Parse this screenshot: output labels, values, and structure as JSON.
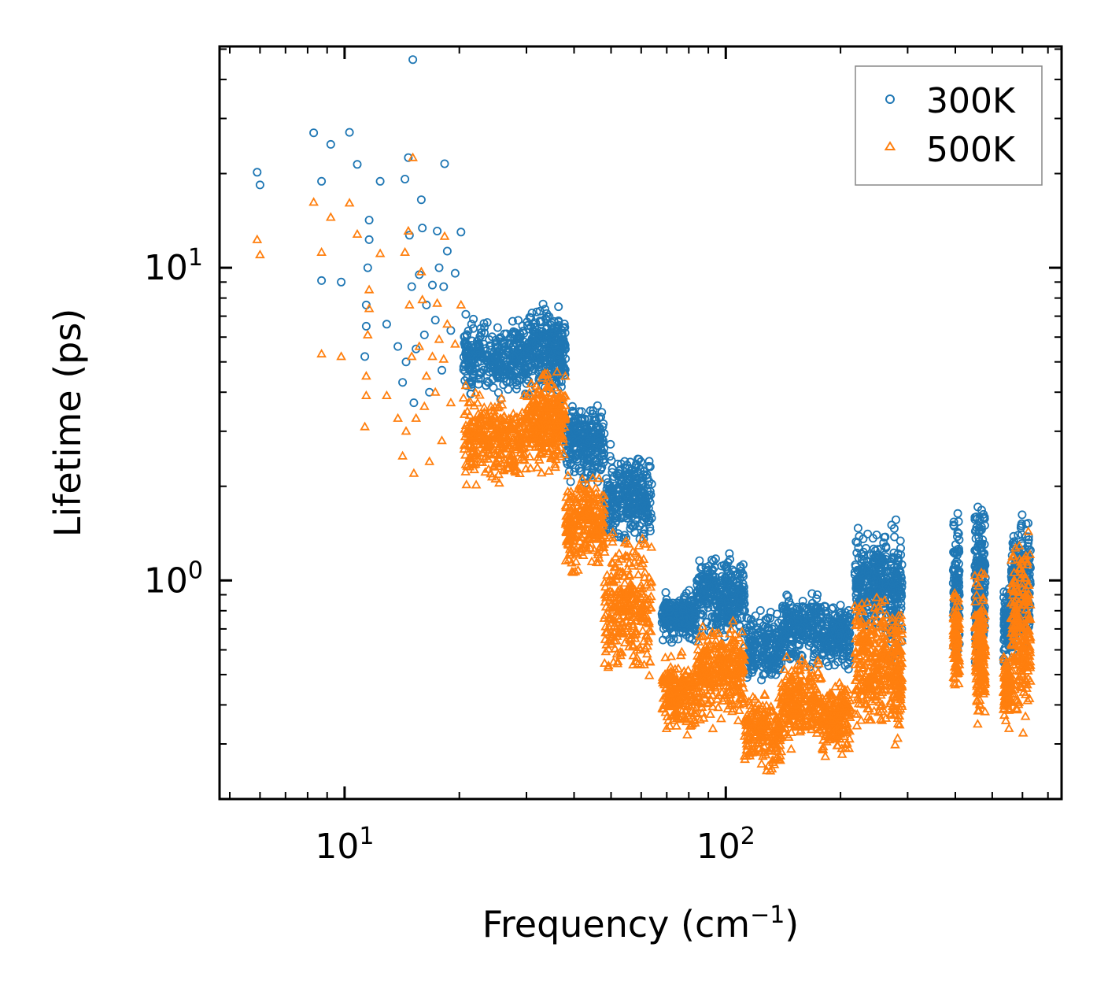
{
  "chart_data": {
    "type": "scatter",
    "title": "",
    "xlabel": {
      "text": "Frequency (cm",
      "sup": "−1",
      "suffix": ")"
    },
    "ylabel": "Lifetime (ps)",
    "xscale": "log",
    "yscale": "log",
    "xlim": [
      4.7,
      760
    ],
    "ylim": [
      0.2,
      51
    ],
    "x_ticks": [
      {
        "value": 10,
        "base": "10",
        "exp": "1"
      },
      {
        "value": 100,
        "base": "10",
        "exp": "2"
      }
    ],
    "y_ticks": [
      {
        "value": 1,
        "base": "10",
        "exp": "0"
      },
      {
        "value": 10,
        "base": "10",
        "exp": "1"
      }
    ],
    "grid": false,
    "legend_position": "top-right",
    "series": [
      {
        "name": "300K",
        "marker": "circle",
        "color": "#1f77b4",
        "points": [
          [
            5.9,
            20.2
          ],
          [
            6.0,
            18.4
          ],
          [
            8.3,
            27.0
          ],
          [
            8.7,
            18.9
          ],
          [
            8.7,
            9.1
          ],
          [
            9.2,
            24.8
          ],
          [
            9.8,
            9.0
          ],
          [
            10.3,
            27.1
          ],
          [
            10.8,
            21.4
          ],
          [
            11.3,
            5.2
          ],
          [
            11.4,
            6.5
          ],
          [
            11.4,
            7.6
          ],
          [
            11.5,
            10.0
          ],
          [
            11.6,
            14.2
          ],
          [
            11.6,
            12.3
          ],
          [
            12.4,
            18.9
          ],
          [
            12.9,
            6.6
          ],
          [
            13.8,
            5.6
          ],
          [
            14.2,
            4.3
          ],
          [
            14.4,
            19.2
          ],
          [
            14.5,
            5.0
          ],
          [
            14.7,
            22.5
          ],
          [
            14.8,
            12.7
          ],
          [
            15.0,
            8.7
          ],
          [
            15.1,
            46.3
          ],
          [
            15.2,
            3.7
          ],
          [
            15.4,
            5.5
          ],
          [
            15.7,
            9.5
          ],
          [
            15.9,
            16.5
          ],
          [
            16.0,
            13.4
          ],
          [
            16.2,
            6.1
          ],
          [
            16.4,
            7.6
          ],
          [
            16.7,
            4.0
          ],
          [
            17.0,
            8.8
          ],
          [
            17.3,
            6.8
          ],
          [
            17.5,
            13.1
          ],
          [
            17.7,
            10.0
          ],
          [
            18.0,
            4.7
          ],
          [
            18.2,
            8.7
          ],
          [
            18.3,
            21.5
          ],
          [
            18.6,
            11.3
          ],
          [
            19.0,
            6.3
          ],
          [
            19.5,
            9.6
          ],
          [
            20.2,
            13.0
          ],
          [
            20.8,
            7.1
          ]
        ],
        "bands": [
          {
            "x_from": 20.5,
            "x_to": 30,
            "count": 330,
            "y_low": 3.6,
            "y_high": 7.2
          },
          {
            "x_from": 30,
            "x_to": 38,
            "count": 300,
            "y_low": 3.5,
            "y_high": 8.2
          },
          {
            "x_from": 38,
            "x_to": 48,
            "count": 260,
            "y_low": 1.9,
            "y_high": 4.0
          },
          {
            "x_from": 48,
            "x_to": 64,
            "count": 300,
            "y_low": 1.2,
            "y_high": 2.8
          },
          {
            "x_from": 68,
            "x_to": 84,
            "count": 220,
            "y_low": 0.6,
            "y_high": 0.98
          },
          {
            "x_from": 84,
            "x_to": 112,
            "count": 320,
            "y_low": 0.62,
            "y_high": 1.3
          },
          {
            "x_from": 112,
            "x_to": 140,
            "count": 200,
            "y_low": 0.45,
            "y_high": 0.85
          },
          {
            "x_from": 140,
            "x_to": 178,
            "count": 240,
            "y_low": 0.5,
            "y_high": 1.0
          },
          {
            "x_from": 178,
            "x_to": 212,
            "count": 200,
            "y_low": 0.5,
            "y_high": 0.9
          },
          {
            "x_from": 218,
            "x_to": 265,
            "count": 260,
            "y_low": 0.65,
            "y_high": 1.6
          },
          {
            "x_from": 270,
            "x_to": 290,
            "count": 140,
            "y_low": 0.5,
            "y_high": 1.7
          },
          {
            "x_from": 395,
            "x_to": 410,
            "count": 100,
            "y_low": 0.5,
            "y_high": 1.9
          },
          {
            "x_from": 450,
            "x_to": 480,
            "count": 180,
            "y_low": 0.5,
            "y_high": 2.1
          },
          {
            "x_from": 535,
            "x_to": 560,
            "count": 90,
            "y_low": 0.5,
            "y_high": 1.0
          },
          {
            "x_from": 560,
            "x_to": 630,
            "count": 240,
            "y_low": 0.5,
            "y_high": 1.8
          }
        ]
      },
      {
        "name": "500K",
        "marker": "triangle",
        "color": "#ff7f0e",
        "points": [
          [
            5.9,
            12.3
          ],
          [
            6.0,
            11.0
          ],
          [
            8.3,
            16.2
          ],
          [
            8.7,
            11.2
          ],
          [
            8.7,
            5.3
          ],
          [
            9.2,
            14.5
          ],
          [
            9.8,
            5.2
          ],
          [
            10.3,
            16.1
          ],
          [
            10.8,
            12.8
          ],
          [
            11.3,
            3.1
          ],
          [
            11.4,
            3.9
          ],
          [
            11.4,
            4.5
          ],
          [
            11.5,
            6.1
          ],
          [
            11.6,
            8.5
          ],
          [
            11.6,
            7.4
          ],
          [
            12.4,
            11.1
          ],
          [
            12.9,
            3.9
          ],
          [
            13.8,
            3.3
          ],
          [
            14.2,
            2.5
          ],
          [
            14.4,
            11.2
          ],
          [
            14.5,
            3.0
          ],
          [
            14.7,
            13.1
          ],
          [
            14.8,
            7.6
          ],
          [
            15.0,
            5.2
          ],
          [
            15.1,
            22.5
          ],
          [
            15.2,
            2.2
          ],
          [
            15.4,
            3.3
          ],
          [
            15.7,
            5.6
          ],
          [
            15.9,
            9.7
          ],
          [
            16.0,
            7.9
          ],
          [
            16.2,
            3.6
          ],
          [
            16.4,
            4.5
          ],
          [
            16.7,
            2.4
          ],
          [
            17.0,
            5.2
          ],
          [
            17.3,
            4.0
          ],
          [
            17.5,
            7.7
          ],
          [
            17.7,
            5.9
          ],
          [
            18.0,
            2.8
          ],
          [
            18.2,
            5.1
          ],
          [
            18.3,
            12.6
          ],
          [
            18.6,
            6.6
          ],
          [
            19.0,
            3.7
          ],
          [
            19.5,
            5.7
          ],
          [
            20.2,
            7.6
          ],
          [
            20.8,
            4.2
          ]
        ],
        "bands": [
          {
            "x_from": 20.5,
            "x_to": 30,
            "count": 330,
            "y_low": 1.9,
            "y_high": 4.2
          },
          {
            "x_from": 30,
            "x_to": 38,
            "count": 300,
            "y_low": 2.1,
            "y_high": 5.0
          },
          {
            "x_from": 38,
            "x_to": 48,
            "count": 260,
            "y_low": 1.0,
            "y_high": 2.3
          },
          {
            "x_from": 48,
            "x_to": 64,
            "count": 300,
            "y_low": 0.42,
            "y_high": 1.6
          },
          {
            "x_from": 68,
            "x_to": 84,
            "count": 220,
            "y_low": 0.3,
            "y_high": 0.62
          },
          {
            "x_from": 84,
            "x_to": 112,
            "count": 320,
            "y_low": 0.32,
            "y_high": 0.78
          },
          {
            "x_from": 112,
            "x_to": 140,
            "count": 200,
            "y_low": 0.23,
            "y_high": 0.46
          },
          {
            "x_from": 140,
            "x_to": 178,
            "count": 240,
            "y_low": 0.27,
            "y_high": 0.62
          },
          {
            "x_from": 178,
            "x_to": 212,
            "count": 200,
            "y_low": 0.25,
            "y_high": 0.52
          },
          {
            "x_from": 218,
            "x_to": 265,
            "count": 260,
            "y_low": 0.3,
            "y_high": 0.98
          },
          {
            "x_from": 270,
            "x_to": 290,
            "count": 140,
            "y_low": 0.27,
            "y_high": 0.95
          },
          {
            "x_from": 395,
            "x_to": 410,
            "count": 100,
            "y_low": 0.38,
            "y_high": 1.05
          },
          {
            "x_from": 450,
            "x_to": 480,
            "count": 180,
            "y_low": 0.32,
            "y_high": 1.15
          },
          {
            "x_from": 535,
            "x_to": 560,
            "count": 90,
            "y_low": 0.32,
            "y_high": 0.6
          },
          {
            "x_from": 560,
            "x_to": 630,
            "count": 240,
            "y_low": 0.3,
            "y_high": 1.5
          }
        ]
      }
    ]
  }
}
